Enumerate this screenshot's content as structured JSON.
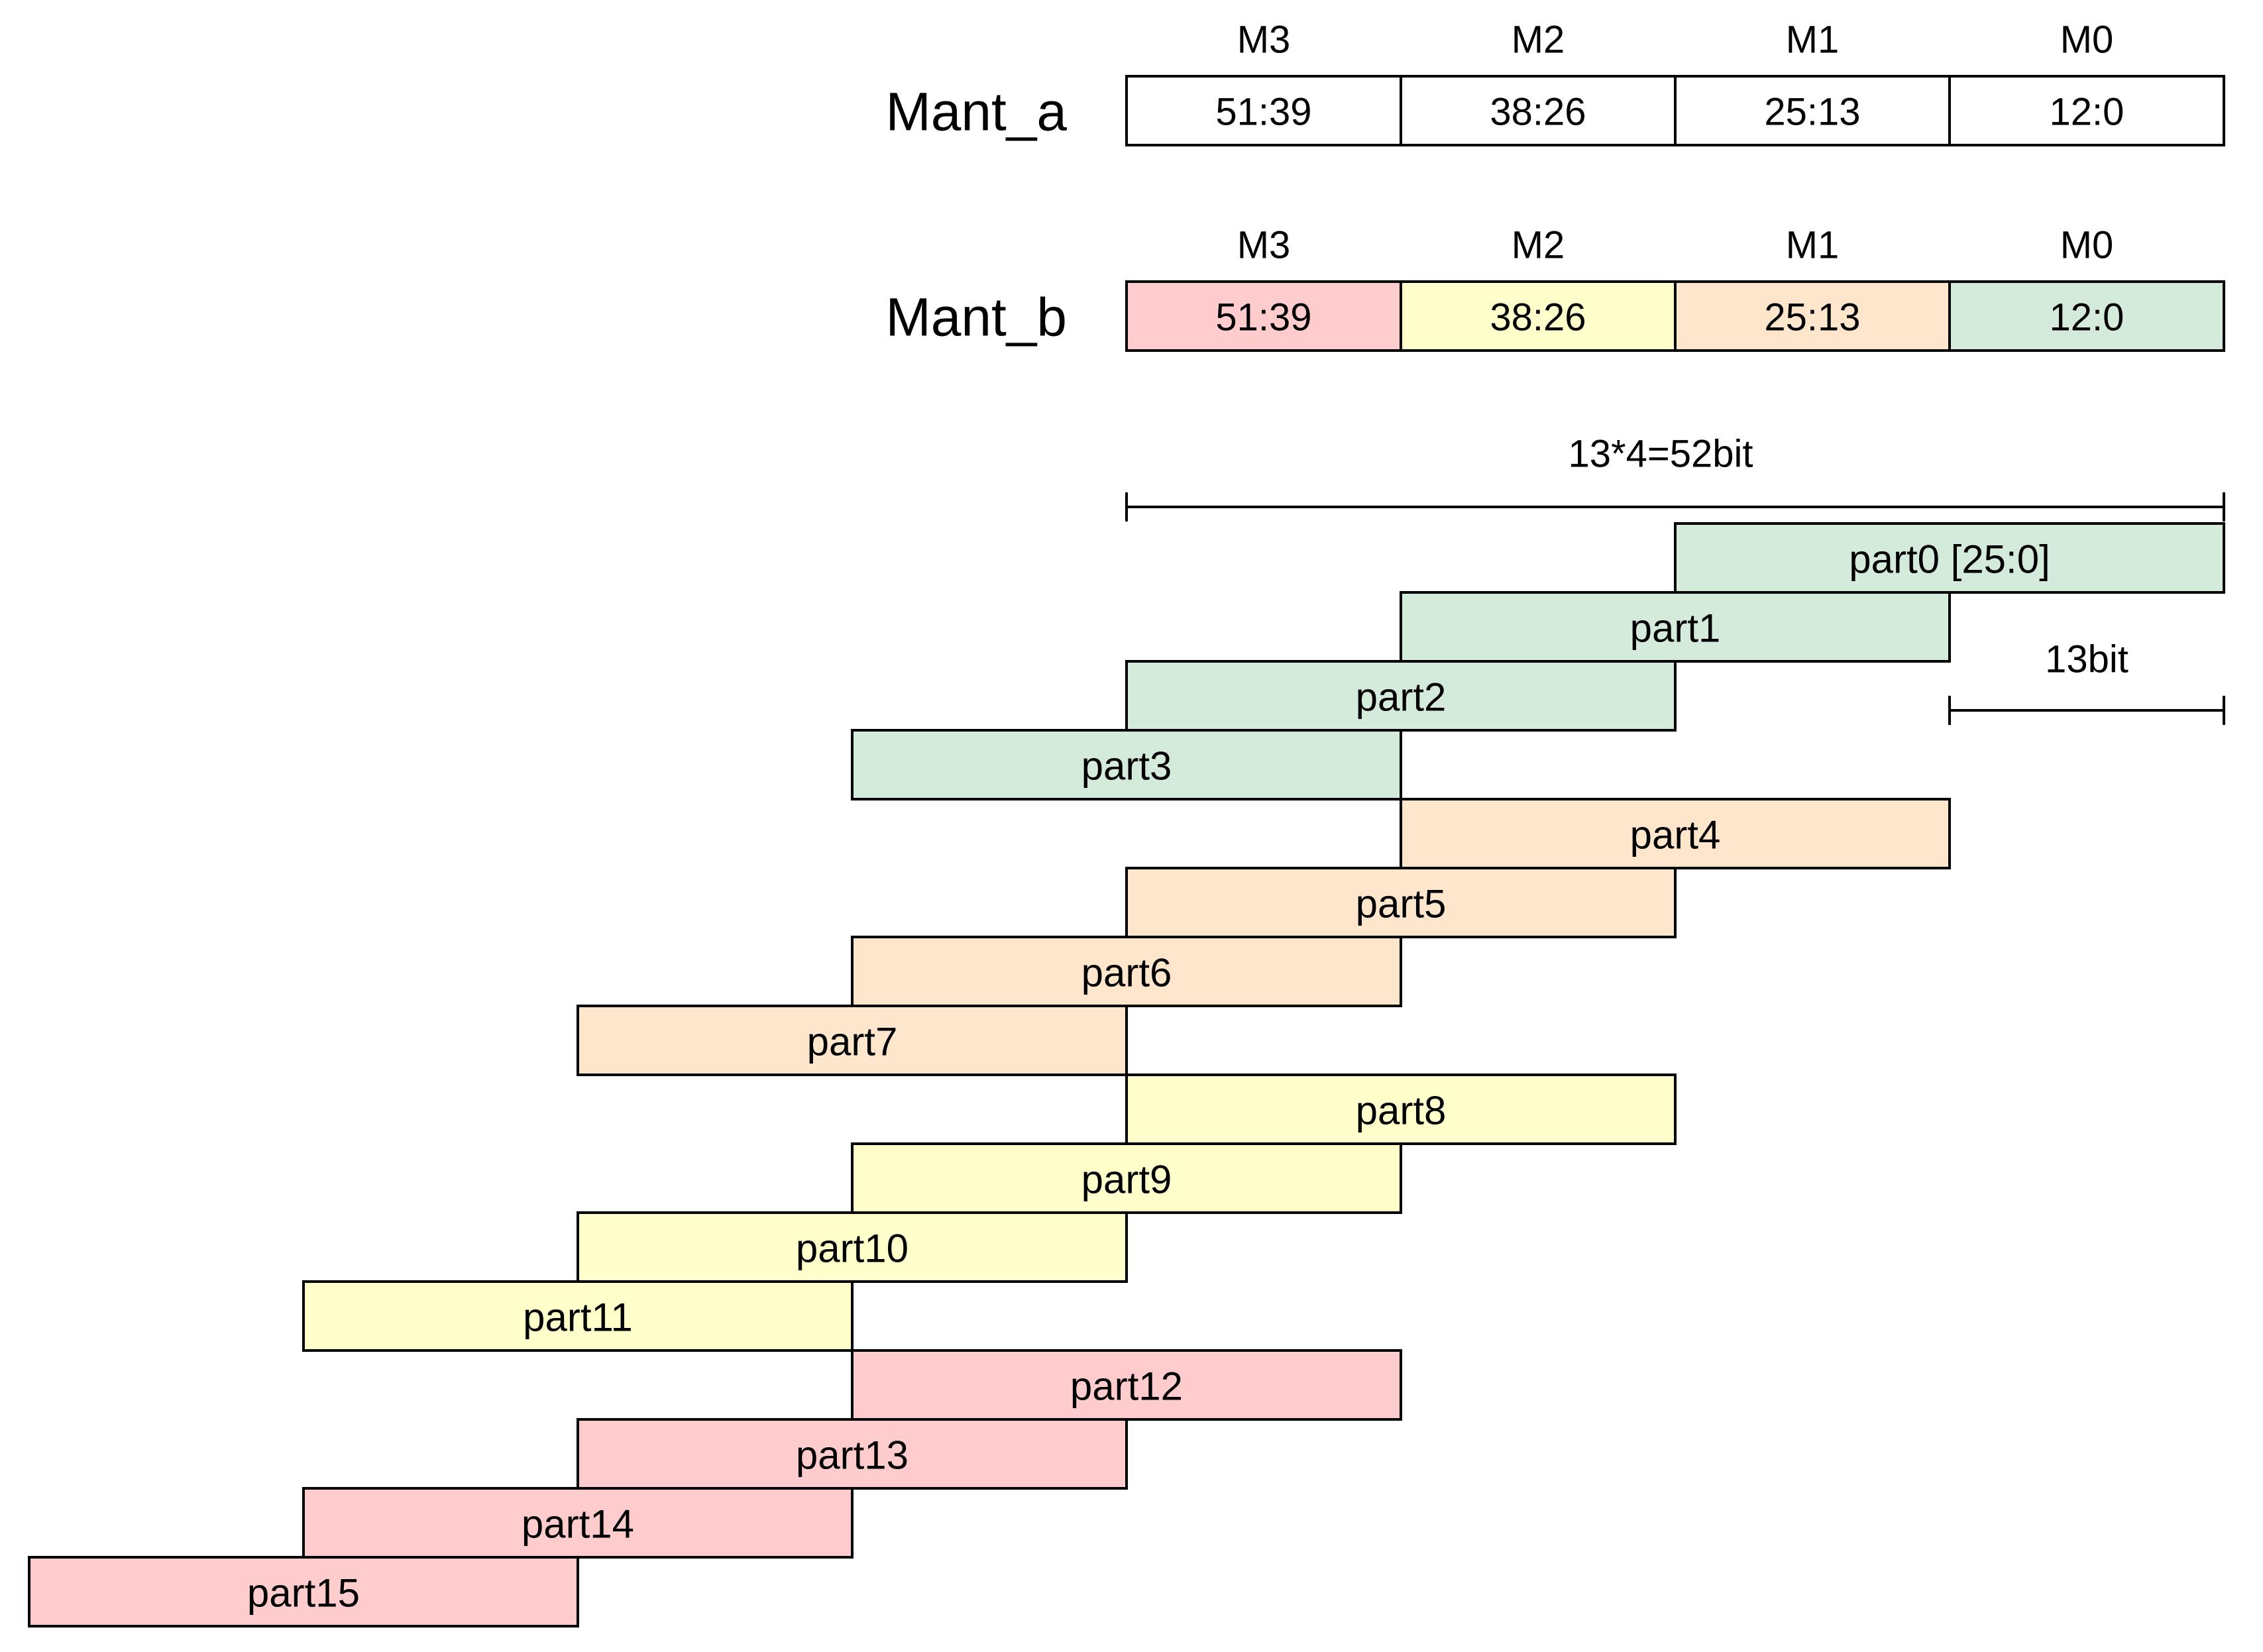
{
  "diagram": {
    "colors": {
      "M3": "#fecccc",
      "M2": "#ffffcc",
      "M1": "#fee6cc",
      "M0": "#d4eadb",
      "plain": "#ffffff"
    },
    "registers": [
      {
        "label": "Mant_a",
        "colored": false,
        "columns": [
          {
            "name": "M3",
            "range": "51:39"
          },
          {
            "name": "M2",
            "range": "38:26"
          },
          {
            "name": "M1",
            "range": "25:13"
          },
          {
            "name": "M0",
            "range": "12:0"
          }
        ]
      },
      {
        "label": "Mant_b",
        "colored": true,
        "columns": [
          {
            "name": "M3",
            "range": "51:39"
          },
          {
            "name": "M2",
            "range": "38:26"
          },
          {
            "name": "M1",
            "range": "25:13"
          },
          {
            "name": "M0",
            "range": "12:0"
          }
        ]
      }
    ],
    "dimensions": {
      "total": "13*4=52bit",
      "segment": "13bit"
    },
    "parts": [
      {
        "label": "part0 [25:0]",
        "group": "M0",
        "shift": 0
      },
      {
        "label": "part1",
        "group": "M0",
        "shift": 1
      },
      {
        "label": "part2",
        "group": "M0",
        "shift": 2
      },
      {
        "label": "part3",
        "group": "M0",
        "shift": 3
      },
      {
        "label": "part4",
        "group": "M1",
        "shift": 1
      },
      {
        "label": "part5",
        "group": "M1",
        "shift": 2
      },
      {
        "label": "part6",
        "group": "M1",
        "shift": 3
      },
      {
        "label": "part7",
        "group": "M1",
        "shift": 4
      },
      {
        "label": "part8",
        "group": "M2",
        "shift": 2
      },
      {
        "label": "part9",
        "group": "M2",
        "shift": 3
      },
      {
        "label": "part10",
        "group": "M2",
        "shift": 4
      },
      {
        "label": "part11",
        "group": "M2",
        "shift": 5
      },
      {
        "label": "part12",
        "group": "M3",
        "shift": 3
      },
      {
        "label": "part13",
        "group": "M3",
        "shift": 4
      },
      {
        "label": "part14",
        "group": "M3",
        "shift": 5
      },
      {
        "label": "part15",
        "group": "M3",
        "shift": 6
      }
    ]
  }
}
